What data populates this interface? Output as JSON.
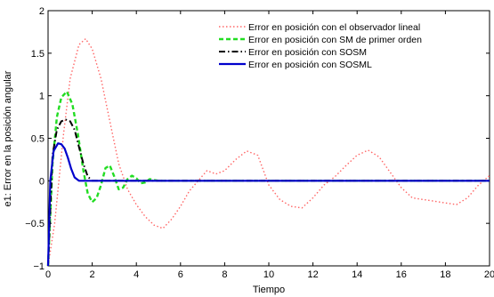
{
  "chart_data": {
    "type": "line",
    "xlabel": "Tiempo",
    "ylabel": "e1: Error en la posición angular",
    "xlim": [
      0,
      20
    ],
    "ylim": [
      -1,
      2
    ],
    "xticks": [
      0,
      2,
      4,
      6,
      8,
      10,
      12,
      14,
      16,
      18,
      20
    ],
    "yticks": [
      -1,
      -0.5,
      0,
      0.5,
      1,
      1.5,
      2
    ],
    "xtick_labels": [
      "0",
      "2",
      "4",
      "6",
      "8",
      "10",
      "12",
      "14",
      "16",
      "18",
      "20"
    ],
    "ytick_labels": [
      "−1",
      "−0.5",
      "0",
      "0.5",
      "1",
      "1.5",
      "2"
    ],
    "grid": false,
    "legend_position": "top-right",
    "series": [
      {
        "name": "Error en posición con el observador lineal",
        "color": "#ff6666",
        "style": "dotted",
        "x": [
          0,
          0.3,
          0.7,
          1.0,
          1.4,
          1.7,
          2.0,
          2.4,
          2.8,
          3.2,
          3.6,
          4.0,
          4.4,
          4.8,
          5.2,
          5.6,
          6.0,
          6.4,
          6.8,
          7.2,
          7.6,
          8.0,
          8.5,
          9.0,
          9.5,
          10.0,
          10.5,
          11.0,
          11.5,
          12.0,
          12.5,
          13.0,
          13.5,
          14.0,
          14.5,
          15.0,
          15.5,
          16.0,
          16.5,
          17.0,
          17.5,
          18.0,
          18.5,
          19.0,
          19.5,
          20.0
        ],
        "y": [
          -1.0,
          -0.5,
          0.55,
          1.2,
          1.6,
          1.67,
          1.55,
          1.2,
          0.7,
          0.2,
          -0.1,
          -0.28,
          -0.42,
          -0.52,
          -0.56,
          -0.45,
          -0.3,
          -0.12,
          0.0,
          0.12,
          0.08,
          0.12,
          0.25,
          0.35,
          0.3,
          -0.05,
          -0.22,
          -0.3,
          -0.32,
          -0.2,
          -0.05,
          0.05,
          0.18,
          0.3,
          0.36,
          0.28,
          0.1,
          -0.08,
          -0.2,
          -0.22,
          -0.24,
          -0.26,
          -0.28,
          -0.2,
          -0.05,
          0.06
        ]
      },
      {
        "name": "Error en posición con SM de primer orden",
        "color": "#22dd22",
        "style": "dashed",
        "x": [
          0,
          0.2,
          0.4,
          0.6,
          0.85,
          1.1,
          1.35,
          1.6,
          1.8,
          2.0,
          2.2,
          2.4,
          2.6,
          2.8,
          3.0,
          3.2,
          3.4,
          3.6,
          3.8,
          4.0,
          4.2,
          4.4,
          4.6,
          4.8,
          5.0,
          5.4,
          6.0,
          8.0,
          10.0,
          12.0,
          14.0,
          16.0,
          18.0,
          20.0
        ],
        "y": [
          -1.0,
          0.2,
          0.75,
          0.98,
          1.05,
          0.9,
          0.55,
          0.12,
          -0.15,
          -0.25,
          -0.2,
          -0.05,
          0.15,
          0.18,
          0.05,
          -0.1,
          -0.08,
          0.02,
          0.06,
          0.03,
          -0.03,
          -0.02,
          0.02,
          0.01,
          0.0,
          0.0,
          0.0,
          0.0,
          0.0,
          0.0,
          0.0,
          0.0,
          0.0,
          0.0
        ]
      },
      {
        "name": "Error en posición con SOSM",
        "color": "#000000",
        "style": "dashdot",
        "x": [
          0,
          0.2,
          0.4,
          0.6,
          0.8,
          1.0,
          1.2,
          1.4,
          1.6,
          1.8,
          2.0,
          2.2,
          3.0,
          6.0,
          10.0,
          14.0,
          18.0,
          20.0
        ],
        "y": [
          -1.0,
          0.3,
          0.6,
          0.7,
          0.72,
          0.7,
          0.6,
          0.4,
          0.2,
          0.05,
          0.0,
          0.0,
          0.0,
          0.0,
          0.0,
          0.0,
          0.0,
          0.0
        ]
      },
      {
        "name": "Error en posición con SOSML",
        "color": "#0000cc",
        "style": "solid",
        "x": [
          0,
          0.1,
          0.25,
          0.45,
          0.6,
          0.75,
          0.9,
          1.05,
          1.2,
          1.4,
          2.0,
          6.0,
          10.0,
          14.0,
          18.0,
          20.0
        ],
        "y": [
          -1.0,
          0.0,
          0.35,
          0.44,
          0.43,
          0.38,
          0.27,
          0.14,
          0.04,
          0.0,
          0.0,
          0.0,
          0.0,
          0.0,
          0.0,
          0.0
        ]
      }
    ]
  }
}
